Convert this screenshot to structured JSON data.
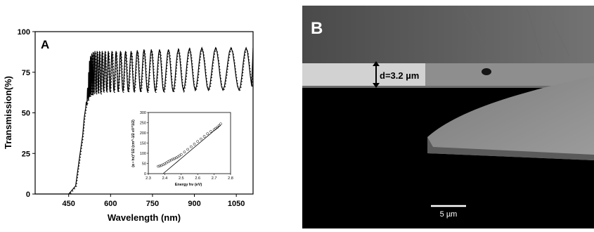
{
  "chart_data": [
    {
      "type": "line",
      "panel_label": "A",
      "xlabel": "Wavelength (nm)",
      "ylabel": "Transmission(%)",
      "xlim": [
        330,
        1110
      ],
      "ylim": [
        0,
        100
      ],
      "x_ticks": [
        450,
        600,
        750,
        900,
        1050
      ],
      "x_tick_labels": [
        "450",
        "600",
        "750",
        "900",
        "1050"
      ],
      "y_ticks": [
        0,
        25,
        50,
        75,
        100
      ],
      "y_tick_labels": [
        "0",
        "25",
        "50",
        "75",
        "100"
      ],
      "grid": false,
      "series": [
        {
          "style": "solid line (measured) with dotted/symbol line (fit)",
          "x": [
            330,
            450,
            475,
            490,
            500,
            505,
            510,
            515,
            520,
            523,
            526,
            530,
            535,
            540,
            548,
            556,
            565,
            575,
            586,
            598,
            612,
            627,
            644,
            663,
            684,
            707,
            732,
            760,
            790,
            824,
            861,
            903,
            950,
            1002,
            1060,
            1110
          ],
          "peaks_y": [
            0,
            0,
            5,
            24,
            36,
            46,
            52,
            60,
            70,
            80,
            84,
            86,
            87,
            88,
            88,
            88,
            88,
            88,
            88,
            88,
            88,
            88,
            88,
            88,
            88,
            89,
            89,
            89,
            89,
            89,
            89,
            90,
            90,
            90,
            90,
            90
          ],
          "valleys_y": [
            0,
            0,
            5,
            24,
            36,
            46,
            52,
            55,
            58,
            60,
            60,
            61,
            61,
            62,
            62,
            62,
            62,
            63,
            63,
            63,
            63,
            63,
            63,
            63,
            63,
            63,
            63,
            63,
            63,
            63,
            64,
            64,
            64,
            64,
            64,
            64
          ]
        }
      ],
      "inset": {
        "type": "scatter",
        "xlabel": "Energy hν (eV)",
        "ylabel": "(α • hν)^1/2 (cm^-1/2 eV^1/2)",
        "xlim": [
          2.3,
          2.8
        ],
        "ylim": [
          0,
          300
        ],
        "x_ticks": [
          2.3,
          2.4,
          2.5,
          2.6,
          2.7,
          2.8
        ],
        "x_tick_labels": [
          "2.3",
          "2.4",
          "2.5",
          "2.6",
          "2.7",
          "2.8"
        ],
        "y_ticks": [
          0,
          50,
          100,
          150,
          200,
          250,
          300
        ],
        "y_tick_labels": [
          "0",
          "50",
          "100",
          "150",
          "200",
          "250",
          "300"
        ],
        "points_x": [
          2.36,
          2.37,
          2.38,
          2.39,
          2.4,
          2.41,
          2.42,
          2.43,
          2.44,
          2.45,
          2.46,
          2.47,
          2.48,
          2.49,
          2.5,
          2.52,
          2.54,
          2.56,
          2.58,
          2.6,
          2.62,
          2.64,
          2.66,
          2.68,
          2.7,
          2.71,
          2.72,
          2.73,
          2.74
        ],
        "points_y": [
          36,
          38,
          40,
          44,
          48,
          53,
          58,
          63,
          67,
          71,
          74,
          78,
          82,
          88,
          94,
          106,
          119,
          132,
          145,
          158,
          170,
          183,
          196,
          207,
          216,
          222,
          228,
          236,
          244
        ],
        "fit_line": {
          "x": [
            2.39,
            2.74
          ],
          "y": [
            0,
            238
          ]
        }
      }
    }
  ],
  "panelB": {
    "label": "B",
    "thickness_label": "d=3.2 µm",
    "scale_bar_label": "5 µm"
  }
}
